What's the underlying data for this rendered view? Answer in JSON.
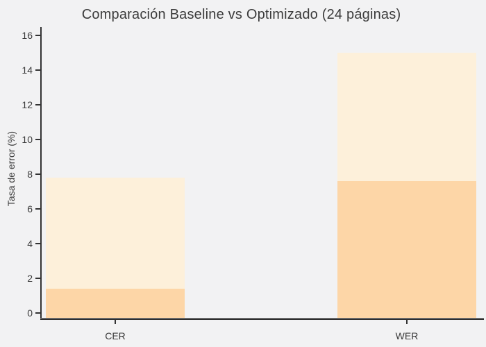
{
  "figure": {
    "background_color": "#f2f2f3",
    "text_color": "#3b3b3b",
    "spine_color": "#333333"
  },
  "chart_data": {
    "type": "bar",
    "title": "Comparación Baseline vs Optimizado (24 páginas)",
    "xlabel": "",
    "ylabel": "Tasa de error (%)",
    "categories": [
      "CER",
      "WER"
    ],
    "series": [
      {
        "name": "Baseline",
        "color": "#fdf0da",
        "values": [
          7.8,
          15.0
        ]
      },
      {
        "name": "Optimizado",
        "color": "#fdd6a7",
        "values": [
          1.4,
          7.6
        ]
      }
    ],
    "ylim": [
      0,
      16
    ],
    "yticks": [
      0,
      2,
      4,
      6,
      8,
      10,
      12,
      14,
      16
    ],
    "grid": false,
    "legend_position": "none",
    "bar_style": "overlaid"
  }
}
